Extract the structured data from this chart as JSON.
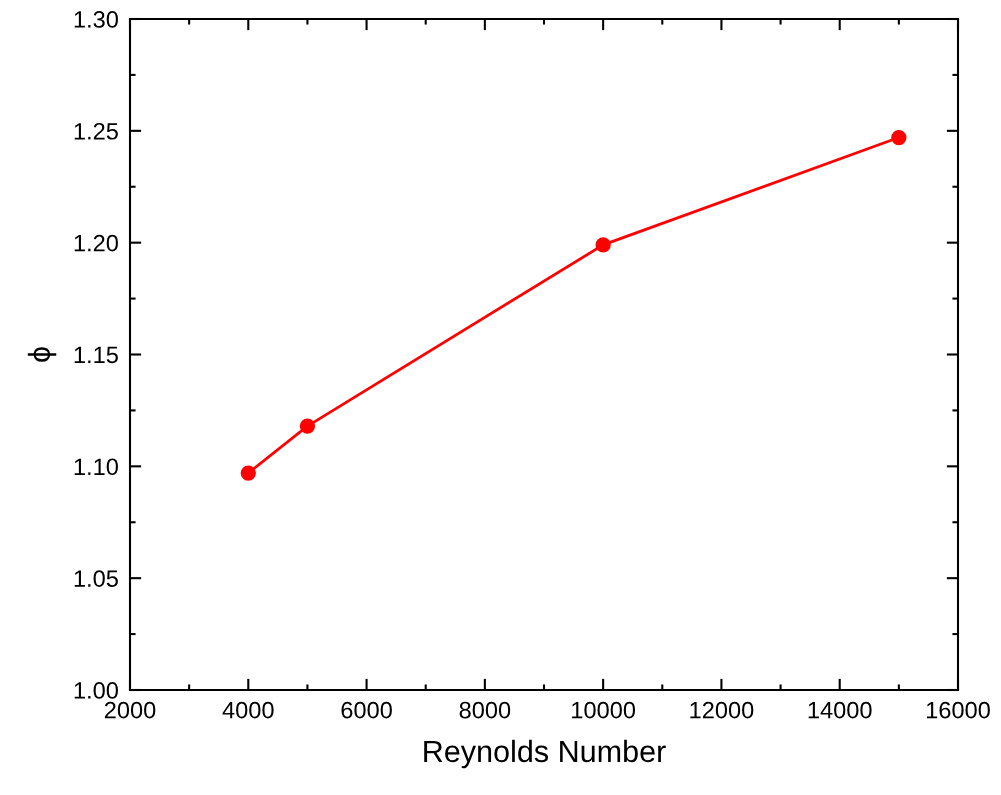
{
  "chart_data": {
    "type": "line",
    "xlabel": "Reynolds Number",
    "ylabel": "ϕ",
    "x": [
      4000,
      5000,
      10000,
      15000
    ],
    "series": [
      {
        "color": "#ff0000",
        "values": [
          1.097,
          1.118,
          1.199,
          1.247
        ]
      }
    ],
    "xlim": [
      2000,
      16000
    ],
    "xticks": [
      2000,
      4000,
      6000,
      8000,
      10000,
      12000,
      14000,
      16000
    ],
    "ylim": [
      1.0,
      1.3
    ],
    "yticks": [
      {
        "value": 1.0,
        "label": "1.00"
      },
      {
        "value": 1.05,
        "label": "1.05"
      },
      {
        "value": 1.1,
        "label": "1.10"
      },
      {
        "value": 1.15,
        "label": "1.15"
      },
      {
        "value": 1.2,
        "label": "1.20"
      },
      {
        "value": 1.25,
        "label": "1.25"
      },
      {
        "value": 1.3,
        "label": "1.30"
      }
    ],
    "marker": "circle",
    "line_style": "solid",
    "grid": false,
    "legend": false
  }
}
